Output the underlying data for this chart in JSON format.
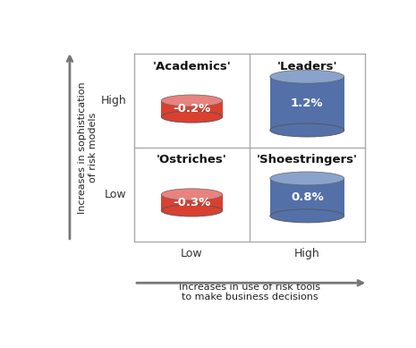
{
  "quadrants": [
    {
      "label": "'Academics'",
      "value": "-0.2%",
      "color": "#d94030",
      "top_color": "#e8837f",
      "row": 1,
      "col": 0,
      "type": "flat"
    },
    {
      "label": "'Leaders'",
      "value": "1.2%",
      "color": "#5470a8",
      "top_color": "#8aa3cc",
      "row": 1,
      "col": 1,
      "type": "tall"
    },
    {
      "label": "'Ostriches'",
      "value": "-0.3%",
      "color": "#d94030",
      "top_color": "#e8837f",
      "row": 0,
      "col": 0,
      "type": "flat"
    },
    {
      "label": "'Shoestringers'",
      "value": "0.8%",
      "color": "#5470a8",
      "top_color": "#8aa3cc",
      "row": 0,
      "col": 1,
      "type": "medium"
    }
  ],
  "y_axis_label": "Increases in sophistication\nof risk models",
  "x_axis_label": "Increases in use of risk tools\nto make business decisions",
  "y_tick_labels": [
    "Low",
    "High"
  ],
  "x_tick_labels": [
    "Low",
    "High"
  ],
  "grid_color": "#aaaaaa",
  "background_color": "#ffffff",
  "label_fontsize": 9.5,
  "value_fontsize": 9.5,
  "tick_fontsize": 9.0,
  "axis_label_fontsize": 8.0
}
